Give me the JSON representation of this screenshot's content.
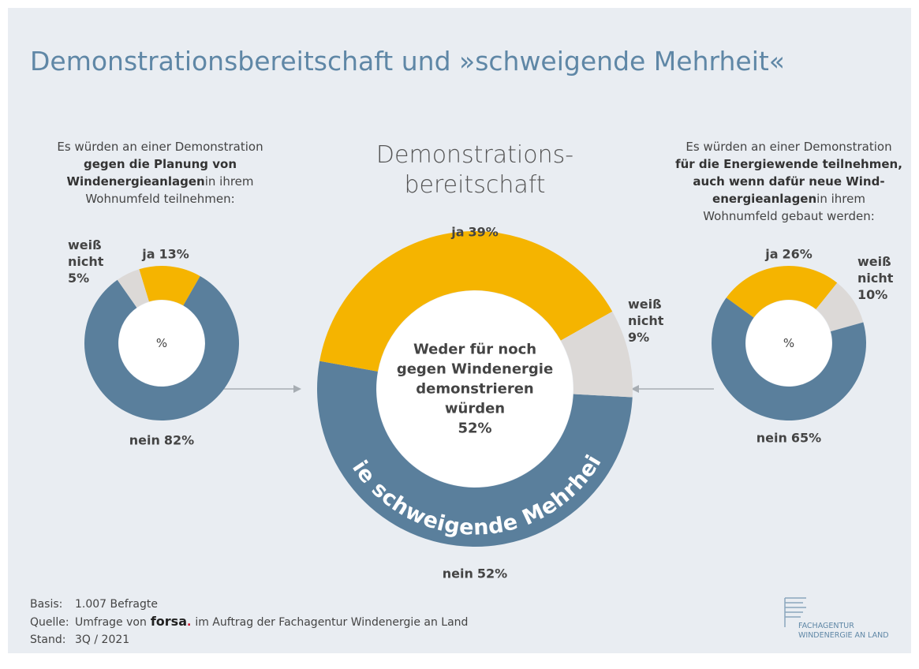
{
  "title": "Demonstrationsbereitschaft und »schweigende Mehrheit«",
  "chart_data": [
    {
      "type": "pie",
      "donut": true,
      "description": [
        [
          {
            "text": "Es würden an einer Demonstration",
            "bold": false
          }
        ],
        [
          {
            "text": "gegen die Planung von",
            "bold": true
          }
        ],
        [
          {
            "text": "Windenergieanlagen",
            "bold": true
          },
          {
            "text": "in ihrem",
            "bold": false
          }
        ],
        [
          {
            "text": "Wohnumfeld teilnehmen:",
            "bold": false
          }
        ]
      ],
      "center_label": "%",
      "categories": [
        "ja",
        "nein",
        "weiß nicht"
      ],
      "values": [
        13,
        82,
        5
      ],
      "value_labels": [
        "13%",
        "82%",
        "5%"
      ],
      "colors": [
        "#f5b400",
        "#5a7f9c",
        "#dcd9d7"
      ]
    },
    {
      "type": "pie",
      "donut": true,
      "title": [
        "Demonstrations-",
        "bereitschaft"
      ],
      "center_label": [
        "Weder für noch",
        "gegen Windenergie",
        "demonstrieren",
        "würden"
      ],
      "annotation": "Die schweigende Mehrheit",
      "categories": [
        "nein",
        "ja",
        "weiß nicht"
      ],
      "values": [
        52,
        39,
        9
      ],
      "value_labels": [
        "52%",
        "39%",
        "9%"
      ],
      "colors": [
        "#5a7f9c",
        "#f5b400",
        "#dcd9d7"
      ]
    },
    {
      "type": "pie",
      "donut": true,
      "description": [
        [
          {
            "text": "Es würden an einer Demonstration",
            "bold": false
          }
        ],
        [
          {
            "text": "für die Energiewende teilnehmen,",
            "bold": true
          }
        ],
        [
          {
            "text": "auch wenn dafür neue Wind-",
            "bold": true
          }
        ],
        [
          {
            "text": "energieanlagen",
            "bold": true
          },
          {
            "text": "in ihrem",
            "bold": false
          }
        ],
        [
          {
            "text": "Wohnumfeld gebaut werden:",
            "bold": false
          }
        ]
      ],
      "center_label": "%",
      "categories": [
        "ja",
        "weiß nicht",
        "nein"
      ],
      "values": [
        26,
        10,
        65
      ],
      "value_labels": [
        "26%",
        "10%",
        "65%"
      ],
      "colors": [
        "#f5b400",
        "#dcd9d7",
        "#5a7f9c"
      ]
    }
  ],
  "footer": [
    {
      "label": "Basis:",
      "parts": [
        "1.007 Befragte"
      ]
    },
    {
      "label": "Quelle:",
      "parts": [
        "Umfrage von",
        "forsa",
        ".",
        "im Auftrag der Fachagentur Windenergie an Land"
      ]
    },
    {
      "label": "Stand:",
      "parts": [
        "3Q / 2021"
      ]
    }
  ],
  "logo": [
    "FACHAGENTUR",
    "WINDENERGIE AN LAND"
  ]
}
